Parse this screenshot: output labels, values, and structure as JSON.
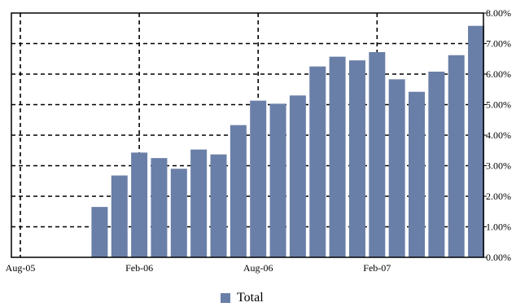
{
  "chart_data": {
    "type": "bar",
    "series": [
      {
        "name": "Total",
        "color": "#6a7fa8",
        "values": [
          0,
          0,
          0,
          0,
          1.65,
          2.68,
          3.43,
          3.25,
          2.9,
          3.53,
          3.37,
          4.33,
          5.13,
          5.03,
          5.3,
          6.25,
          6.57,
          6.45,
          6.72,
          5.83,
          5.42,
          6.08,
          6.62,
          7.58
        ]
      }
    ],
    "x": [
      "Aug-05",
      "Sep-05",
      "Oct-05",
      "Nov-05",
      "Dec-05",
      "Jan-06",
      "Feb-06",
      "Mar-06",
      "Apr-06",
      "May-06",
      "Jun-06",
      "Jul-06",
      "Aug-06",
      "Sep-06",
      "Oct-06",
      "Nov-06",
      "Dec-06",
      "Jan-07",
      "Feb-07",
      "Mar-07",
      "Apr-07",
      "May-07",
      "Jun-07",
      "Jul-07"
    ],
    "x_tick_labels": [
      "Aug-05",
      "Feb-06",
      "Aug-06",
      "Feb-07"
    ],
    "x_tick_indices": [
      0,
      6,
      12,
      18
    ],
    "y_tick_labels": [
      "0.00%",
      "1.00%",
      "2.00%",
      "3.00%",
      "4.00%",
      "5.00%",
      "6.00%",
      "7.00%",
      "8.00%"
    ],
    "ylim": [
      0,
      8
    ],
    "y_axis_side": "right",
    "grid": "dashed",
    "legend_position": "bottom-center",
    "title": "",
    "xlabel": "",
    "ylabel": ""
  }
}
